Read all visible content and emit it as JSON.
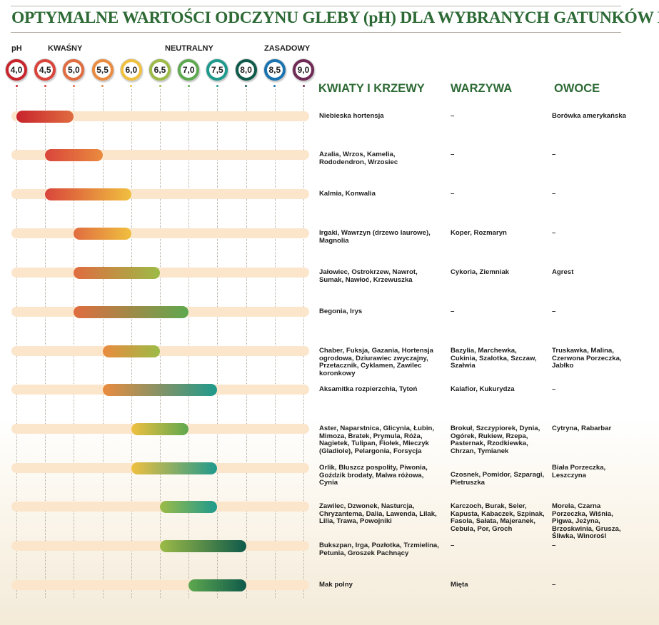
{
  "title": "OPTYMALNE WARTOŚCI ODCZYNU GLEBY (pH) DLA WYBRANYCH GATUNKÓW ROŚLIN",
  "scale_labels": {
    "ph": "pH",
    "acid": "KWAŚNY",
    "neutral": "NEUTRALNY",
    "alkaline": "ZASADOWY"
  },
  "colors": {
    "title": "#2d6a35",
    "track": "#fbe6cc",
    "scale": [
      "#c8242c",
      "#d9453b",
      "#e06c40",
      "#ea8b3f",
      "#f0c03f",
      "#9cbb47",
      "#5ea84f",
      "#1e9a8d",
      "#0f5a4a",
      "#1b74b0",
      "#6f2a55"
    ]
  },
  "chart_data": {
    "type": "range-bar",
    "title": "OPTYMALNE WARTOŚCI ODCZYNU GLEBY (pH) DLA WYBRANYCH GATUNKÓW ROŚLIN",
    "x_label": "pH",
    "x_range": [
      4.0,
      9.0
    ],
    "ph_scale": [
      "4,0",
      "4,5",
      "5,0",
      "5,5",
      "6,0",
      "6,5",
      "7,0",
      "7,5",
      "8,0",
      "8,5",
      "9,0"
    ],
    "zones": [
      "KWAŚNY",
      "NEUTRALNY",
      "ZASADOWY"
    ],
    "columns": [
      "KWIATY I KRZEWY",
      "WARZYWA",
      "OWOCE"
    ],
    "rows": [
      {
        "ph_min": 4.0,
        "ph_max": 5.0,
        "flowers": "Niebieska hortensja",
        "vegetables": "–",
        "fruits": "Borówka amerykańska"
      },
      {
        "ph_min": 4.5,
        "ph_max": 5.5,
        "flowers": "Azalia, Wrzos, Kamelia, Rododendron, Wrzosiec",
        "vegetables": "–",
        "fruits": "–"
      },
      {
        "ph_min": 4.5,
        "ph_max": 6.0,
        "flowers": "Kalmia, Konwalia",
        "vegetables": "–",
        "fruits": "–"
      },
      {
        "ph_min": 5.0,
        "ph_max": 6.0,
        "flowers": "Irgaki, Wawrzyn (drzewo laurowe), Magnolia",
        "vegetables": "Koper, Rozmaryn",
        "fruits": "–"
      },
      {
        "ph_min": 5.0,
        "ph_max": 6.5,
        "flowers": "Jałowiec, Ostrokrzew, Nawrot, Sumak, Nawłoć, Krzewuszka",
        "vegetables": "Cykoria, Ziemniak",
        "fruits": "Agrest"
      },
      {
        "ph_min": 5.0,
        "ph_max": 7.0,
        "flowers": "Begonia, Irys",
        "vegetables": "–",
        "fruits": "–"
      },
      {
        "ph_min": 5.5,
        "ph_max": 6.5,
        "flowers": "Chaber, Fuksja, Gazania, Hortensja ogrodowa, Dziurawiec zwyczajny, Przetacznik, Cyklamen, Zawilec koronkowy",
        "vegetables": "Bazylia, Marchewka, Cukinia, Szalotka, Szczaw, Szałwia",
        "fruits": "Truskawka, Malina, Czerwona Porzeczka, Jabłko"
      },
      {
        "ph_min": 5.5,
        "ph_max": 7.5,
        "flowers": "Aksamitka rozpierzchła, Tytoń",
        "vegetables": "Kalafior, Kukurydza",
        "fruits": "–"
      },
      {
        "ph_min": 6.0,
        "ph_max": 7.0,
        "flowers": "Aster, Naparstnica, Glicynia, Łubin, Mimoza, Bratek, Prymula, Róża, Nagietek, Tulipan, Fiołek, Mieczyk (Gladiole), Pelargonia, Forsycja",
        "vegetables": "Brokuł, Szczypiorek, Dynia, Ogórek, Rukiew, Rzepa, Pasternak, Rzodkiewka, Chrzan, Tymianek",
        "fruits": "Cytryna, Rabarbar"
      },
      {
        "ph_min": 6.0,
        "ph_max": 7.5,
        "flowers": "Orlik, Bluszcz pospolity, Piwonia, Goździk brodaty,  Malwa różowa, Cynia",
        "vegetables": "Czosnek, Pomidor, Szparagi, Pietruszka",
        "fruits": "Biała Porzeczka, Leszczyna"
      },
      {
        "ph_min": 6.5,
        "ph_max": 7.5,
        "flowers": "Zawilec, Dzwonek, Nasturcja, Chryzantema, Dalia, Lawenda, Lilak, Lilia, Trawa, Powojniki",
        "vegetables": "Karczoch, Burak, Seler, Kapusta, Kabaczek, Szpinak, Fasola, Sałata, Majeranek, Cebula, Por, Groch",
        "fruits": "Morela, Czarna Porzeczka, Wiśnia, Pigwa, Jeżyna, Brzoskwinia, Grusza, Śliwka, Winorośl"
      },
      {
        "ph_min": 6.5,
        "ph_max": 8.0,
        "flowers": "Bukszpan, Irga, Pozłotka, Trzmielina, Petunia, Groszek Pachnący",
        "vegetables": "–",
        "fruits": "–"
      },
      {
        "ph_min": 7.0,
        "ph_max": 8.0,
        "flowers": "Mak polny",
        "vegetables": "Mięta",
        "fruits": "–"
      }
    ]
  }
}
